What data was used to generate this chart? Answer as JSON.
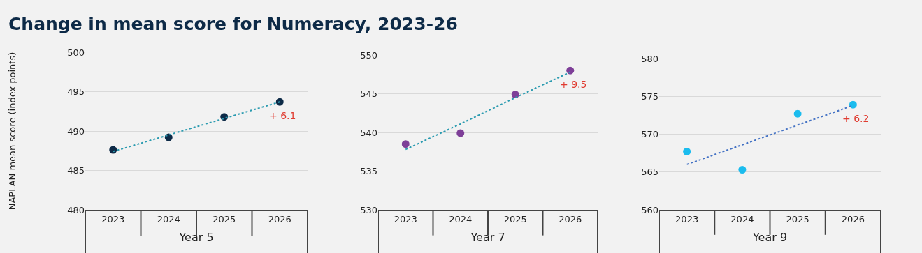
{
  "chart_data": [
    {
      "type": "scatter",
      "title": "Change in mean score for Numeracy, 2023-26",
      "ylabel": "NAPLAN mean score (index points)",
      "xlabel": "Year 5",
      "categories": [
        "2023",
        "2024",
        "2025",
        "2026"
      ],
      "ylim": [
        480,
        500
      ],
      "yticks": [
        480,
        485,
        490,
        495,
        500
      ],
      "grid": "y",
      "series": [
        {
          "marker": "circle",
          "color": "#0d2a47",
          "values": [
            487.6,
            489.2,
            491.8,
            493.7
          ]
        },
        {
          "type": "line",
          "marker": "none",
          "line_style": "dotted",
          "color": "#2b9bb0",
          "values": [
            487.4,
            489.5,
            491.6,
            493.7
          ]
        }
      ],
      "annotations": [
        {
          "text": "+ 6.1",
          "x": "2026",
          "y": 493.7
        }
      ]
    },
    {
      "type": "scatter",
      "xlabel": "Year 7",
      "categories": [
        "2023",
        "2024",
        "2025",
        "2026"
      ],
      "ylim": [
        530,
        550
      ],
      "yticks": [
        530,
        535,
        540,
        545,
        550
      ],
      "grid": "y",
      "series": [
        {
          "marker": "circle",
          "color": "#7e3f98",
          "values": [
            538.5,
            539.9,
            544.9,
            548.0
          ]
        },
        {
          "type": "line",
          "marker": "none",
          "line_style": "dotted",
          "color": "#2b9bb0",
          "values": [
            537.8,
            541.1,
            544.5,
            547.8
          ]
        }
      ],
      "annotations": [
        {
          "text": "+ 9.5",
          "x": "2026",
          "y": 548.0
        }
      ]
    },
    {
      "type": "scatter",
      "xlabel": "Year 9",
      "categories": [
        "2023",
        "2024",
        "2025",
        "2026"
      ],
      "ylim": [
        560,
        580
      ],
      "yticks": [
        560,
        565,
        570,
        575,
        580
      ],
      "grid": "y",
      "series": [
        {
          "marker": "circle",
          "color": "#1bbcee",
          "values": [
            567.7,
            565.3,
            572.7,
            573.9
          ]
        },
        {
          "type": "line",
          "marker": "none",
          "line_style": "dotted",
          "color": "#4472c4",
          "values": [
            566.0,
            568.6,
            571.2,
            573.8
          ]
        }
      ],
      "annotations": [
        {
          "text": "+ 6.2",
          "x": "2026",
          "y": 573.9
        }
      ]
    }
  ]
}
